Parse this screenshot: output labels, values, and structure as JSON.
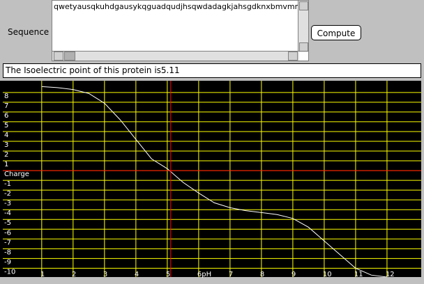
{
  "form": {
    "sequence_label": "Sequence",
    "sequence": "qwetyausqkuhdgausykqguadqudjhsqwdadagkjahsgdknxbmvmnk",
    "button": "Compute",
    "result_prefix": "The Isoelectric point of this protein is",
    "isoelectric_point": 5.11
  },
  "chart_data": {
    "type": "line",
    "x": [
      1,
      1.5,
      2,
      2.5,
      3,
      3.5,
      4,
      4.5,
      5,
      5.5,
      6,
      6.5,
      7,
      7.5,
      8,
      8.5,
      9,
      9.5,
      10,
      10.5,
      11,
      11.5,
      12
    ],
    "series": [
      {
        "name": "Charge",
        "color": "#ffffff",
        "values": [
          8.6,
          8.5,
          8.3,
          7.9,
          6.9,
          5.2,
          3.2,
          1.2,
          0.2,
          -1.2,
          -2.3,
          -3.3,
          -3.8,
          -4.1,
          -4.3,
          -4.5,
          -4.9,
          -5.8,
          -7.2,
          -8.6,
          -10.0,
          -10.7,
          -10.9
        ]
      }
    ],
    "xlim": [
      -0.24,
      13.09
    ],
    "ylim": [
      -10.9,
      9.2
    ],
    "xticks": [
      1,
      2,
      3,
      4,
      5,
      {
        "value": 6,
        "label": "6pH"
      },
      7,
      8,
      9,
      10,
      11,
      12
    ],
    "yticks": [
      -10,
      -9,
      -8,
      -7,
      -6,
      -5,
      -4,
      -3,
      -2,
      -1,
      {
        "value": 0,
        "label": "Charge"
      },
      1,
      2,
      3,
      4,
      5,
      6,
      7,
      8
    ],
    "grid": true,
    "grid_color": "#ffff00",
    "marker_color": "#ff0000"
  }
}
